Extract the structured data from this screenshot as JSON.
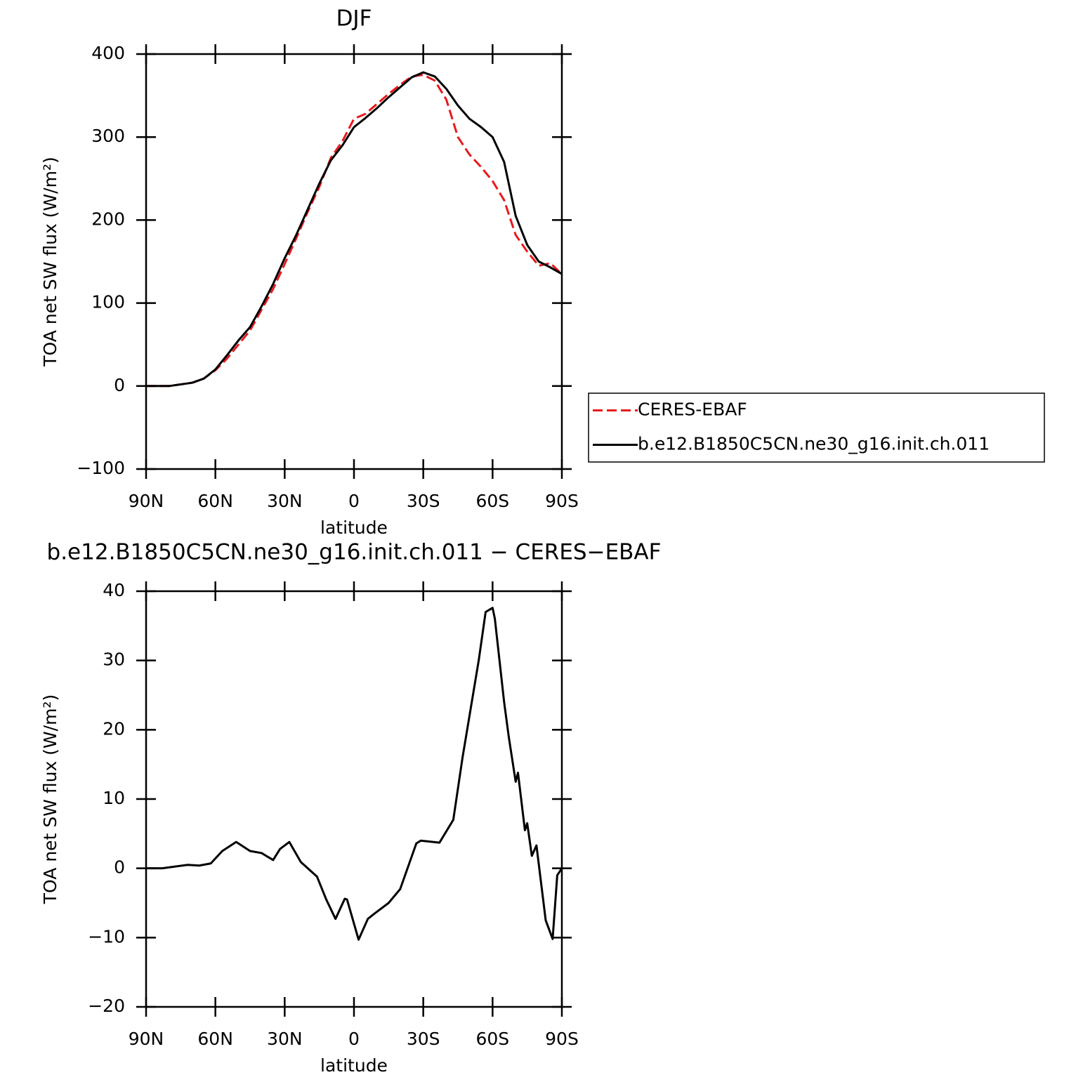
{
  "chart_data": [
    {
      "type": "line",
      "title": "DJF",
      "x_label": "latitude",
      "y_label": "TOA net SW flux (W/m²)",
      "x": [
        90,
        85,
        80,
        75,
        70,
        65,
        60,
        55,
        50,
        45,
        40,
        35,
        30,
        25,
        20,
        15,
        10,
        5,
        0,
        -5,
        -10,
        -15,
        -20,
        -25,
        -30,
        -35,
        -40,
        -45,
        -50,
        -55,
        -60,
        -65,
        -70,
        -75,
        -80,
        -85,
        -90
      ],
      "series": [
        {
          "name": "CERES-EBAF",
          "color": "#e8191c",
          "dash": true,
          "values": [
            0,
            0,
            0,
            2,
            4,
            9,
            19,
            33,
            50,
            67,
            92,
            117,
            147,
            178,
            210,
            240,
            275,
            295,
            322,
            328,
            340,
            352,
            363,
            373,
            375,
            368,
            345,
            300,
            279,
            264,
            247,
            224,
            182,
            162,
            145,
            148,
            135
          ]
        },
        {
          "name": "b.e12.B1850C5CN.ne30_g16.init.ch.011",
          "color": "#000000",
          "dash": false,
          "values": [
            0,
            0,
            0,
            2,
            4,
            9,
            20,
            37,
            55,
            71,
            96,
            123,
            154,
            182,
            213,
            244,
            272,
            290,
            312,
            323,
            335,
            348,
            360,
            372,
            378,
            373,
            358,
            338,
            322,
            312,
            300,
            270,
            205,
            170,
            150,
            143,
            135
          ]
        }
      ],
      "xlim": [
        90,
        -90
      ],
      "xticks": [
        {
          "value": 90,
          "label": "90N"
        },
        {
          "value": 60,
          "label": "60N"
        },
        {
          "value": 30,
          "label": "30N"
        },
        0,
        {
          "value": -30,
          "label": "30S"
        },
        {
          "value": -60,
          "label": "60S"
        },
        {
          "value": -90,
          "label": "90S"
        }
      ],
      "ylim": [
        -100,
        400
      ],
      "yticks": [
        {
          "value": -100,
          "label": "−100"
        },
        0,
        100,
        200,
        300,
        400
      ],
      "legend": "outside-right"
    },
    {
      "type": "line",
      "title": "b.e12.B1850C5CN.ne30_g16.init.ch.011 − CERES−EBAF",
      "x_label": "latitude",
      "y_label": "TOA net SW flux (W/m²)",
      "x": [
        90,
        83,
        72,
        67,
        62,
        57,
        51,
        45,
        40,
        35,
        32,
        28,
        23,
        16,
        12,
        8,
        4,
        3,
        -2,
        -6,
        -9,
        -15,
        -20,
        -27,
        -29,
        -37,
        -43,
        -47,
        -54,
        -57,
        -60,
        -61,
        -65,
        -67,
        -70,
        -71,
        -74,
        -75,
        -77,
        -79,
        -83,
        -86,
        -88,
        -90
      ],
      "series": [
        {
          "color": "#000000",
          "dash": false,
          "values": [
            0,
            0,
            0.5,
            0.4,
            0.7,
            2.5,
            3.8,
            2.5,
            2.2,
            1.2,
            2.8,
            3.8,
            0.9,
            -1.2,
            -4.5,
            -7.3,
            -4.4,
            -4.5,
            -10.3,
            -7.3,
            -6.5,
            -5,
            -3,
            3.6,
            4,
            3.7,
            7,
            16,
            30,
            37,
            37.6,
            36,
            24,
            19,
            12.5,
            13.8,
            5.5,
            6.5,
            1.8,
            3.3,
            -7.5,
            -10.2,
            -1,
            0
          ]
        }
      ],
      "xlim": [
        90,
        -90
      ],
      "xticks": [
        {
          "value": 90,
          "label": "90N"
        },
        {
          "value": 60,
          "label": "60N"
        },
        {
          "value": 30,
          "label": "30N"
        },
        0,
        {
          "value": -30,
          "label": "30S"
        },
        {
          "value": -60,
          "label": "60S"
        },
        {
          "value": -90,
          "label": "90S"
        }
      ],
      "ylim": [
        -20,
        40
      ],
      "yticks": [
        {
          "value": -20,
          "label": "−20"
        },
        {
          "value": -10,
          "label": "−10"
        },
        0,
        10,
        20,
        30,
        40
      ]
    }
  ]
}
